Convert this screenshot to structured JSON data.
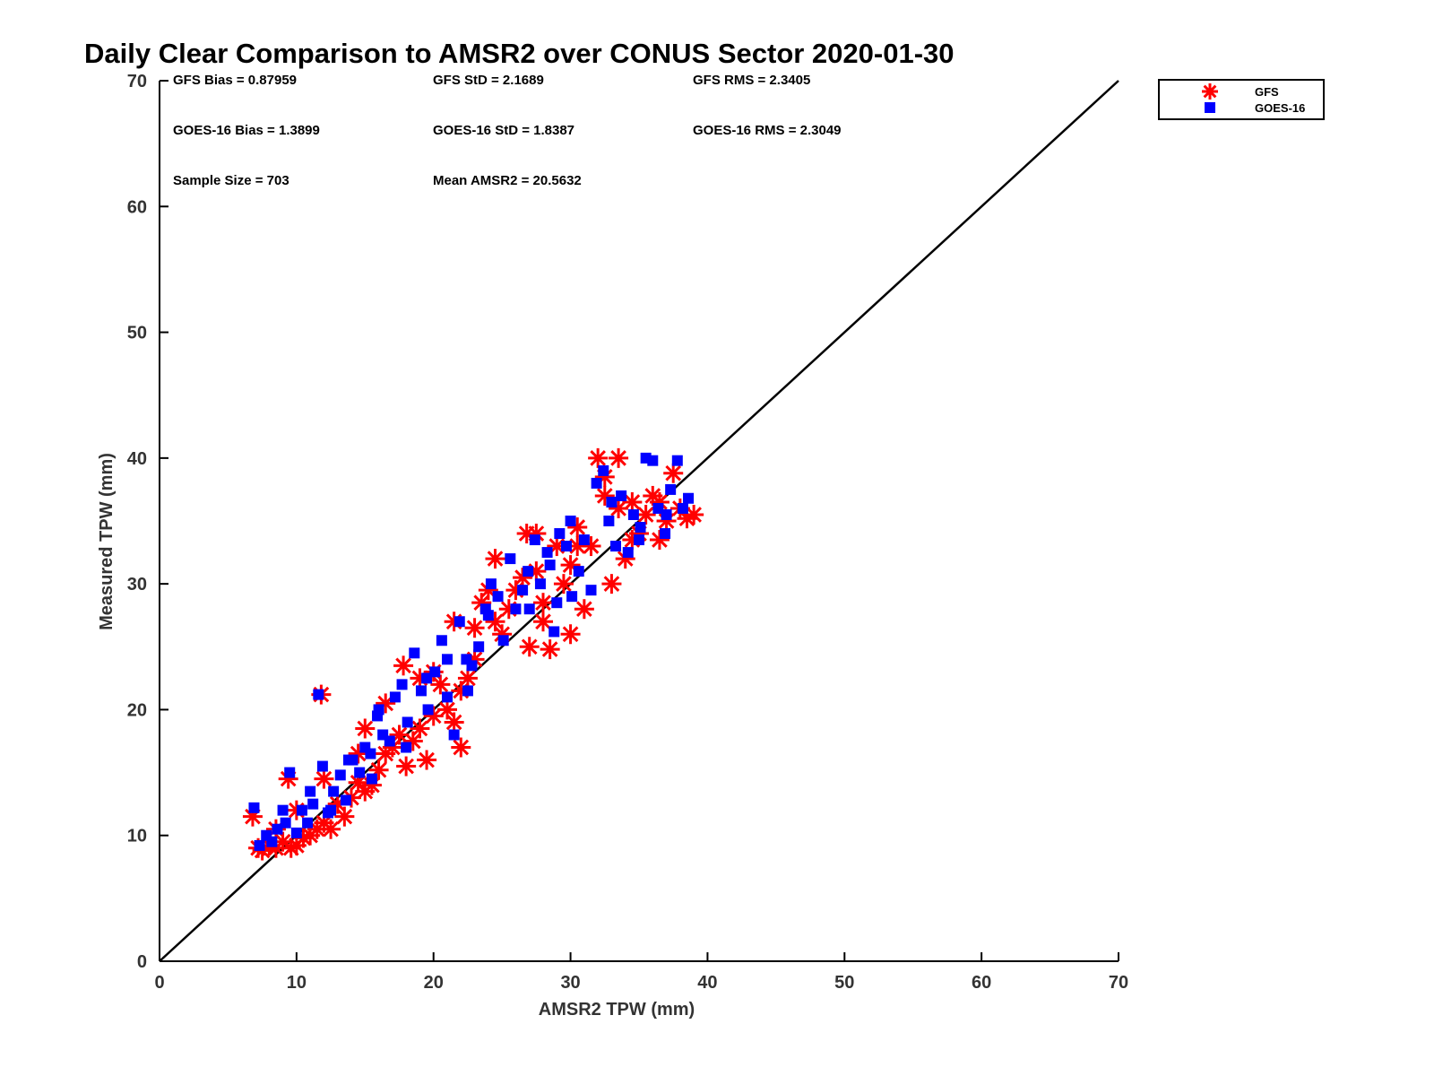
{
  "chart_data": {
    "type": "scatter",
    "title": "Daily Clear Comparison to AMSR2 over CONUS Sector 2020-01-30",
    "xlabel": "AMSR2 TPW (mm)",
    "ylabel": "Measured TPW (mm)",
    "xlim": [
      0,
      70
    ],
    "ylim": [
      0,
      70
    ],
    "xticks": [
      "0",
      "10",
      "20",
      "30",
      "40",
      "50",
      "60",
      "70"
    ],
    "yticks": [
      "0",
      "10",
      "20",
      "30",
      "40",
      "50",
      "60",
      "70"
    ],
    "grid": false,
    "legend_position": "outside-top-right",
    "reference_line": {
      "from": [
        0,
        0
      ],
      "to": [
        70,
        70
      ],
      "color": "#000000"
    },
    "stats": [
      {
        "label": "GFS Bias = 0.87959"
      },
      {
        "label": "GFS StD = 2.1689"
      },
      {
        "label": "GFS RMS = 2.3405"
      },
      {
        "label": "GOES-16 Bias = 1.3899"
      },
      {
        "label": "GOES-16 StD = 1.8387"
      },
      {
        "label": "GOES-16 RMS = 2.3049"
      },
      {
        "label": "Sample Size = 703"
      },
      {
        "label": "Mean AMSR2 = 20.5632"
      }
    ],
    "series": [
      {
        "name": "GFS",
        "marker": "asterisk",
        "color": "#ff0000",
        "points": [
          [
            6.8,
            11.5
          ],
          [
            7.2,
            9.0
          ],
          [
            7.5,
            8.8
          ],
          [
            8.0,
            9.2
          ],
          [
            8.5,
            9.0
          ],
          [
            9.0,
            9.5
          ],
          [
            9.4,
            14.5
          ],
          [
            9.6,
            9.0
          ],
          [
            10.0,
            9.2
          ],
          [
            10.5,
            9.8
          ],
          [
            11.0,
            10.0
          ],
          [
            11.5,
            10.5
          ],
          [
            11.8,
            21.2
          ],
          [
            12.0,
            11.0
          ],
          [
            12.5,
            10.5
          ],
          [
            13.0,
            12.5
          ],
          [
            13.5,
            11.5
          ],
          [
            14.0,
            13.0
          ],
          [
            14.5,
            14.2
          ],
          [
            15.0,
            13.5
          ],
          [
            15.5,
            14.0
          ],
          [
            16.0,
            15.2
          ],
          [
            16.5,
            16.5
          ],
          [
            17.0,
            17.0
          ],
          [
            17.5,
            18.0
          ],
          [
            18.0,
            15.5
          ],
          [
            18.5,
            17.5
          ],
          [
            19.0,
            18.5
          ],
          [
            19.5,
            16.0
          ],
          [
            20.0,
            19.5
          ],
          [
            20.5,
            22.0
          ],
          [
            21.0,
            20.0
          ],
          [
            21.5,
            19.0
          ],
          [
            22.0,
            17.0
          ],
          [
            22.5,
            22.5
          ],
          [
            23.0,
            26.5
          ],
          [
            23.5,
            28.5
          ],
          [
            24.0,
            29.5
          ],
          [
            24.5,
            27.0
          ],
          [
            25.0,
            26.0
          ],
          [
            25.5,
            28.0
          ],
          [
            26.0,
            29.5
          ],
          [
            26.5,
            30.5
          ],
          [
            27.0,
            25.0
          ],
          [
            27.5,
            34.0
          ],
          [
            28.0,
            28.5
          ],
          [
            28.5,
            24.8
          ],
          [
            29.0,
            33.0
          ],
          [
            29.5,
            30.0
          ],
          [
            30.0,
            31.5
          ],
          [
            30.5,
            34.5
          ],
          [
            31.0,
            28.0
          ],
          [
            31.5,
            33.0
          ],
          [
            32.0,
            40.0
          ],
          [
            32.5,
            37.0
          ],
          [
            33.0,
            30.0
          ],
          [
            33.5,
            40.0
          ],
          [
            34.0,
            32.0
          ],
          [
            34.5,
            36.5
          ],
          [
            35.0,
            34.0
          ],
          [
            35.5,
            35.5
          ],
          [
            36.0,
            37.0
          ],
          [
            36.5,
            33.5
          ],
          [
            37.0,
            35.0
          ],
          [
            37.5,
            38.8
          ],
          [
            38.0,
            36.0
          ],
          [
            38.5,
            35.2
          ],
          [
            39.0,
            35.5
          ],
          [
            30.0,
            26.0
          ],
          [
            28.0,
            27.0
          ],
          [
            17.8,
            23.5
          ],
          [
            19.0,
            22.5
          ],
          [
            21.5,
            27.0
          ],
          [
            26.8,
            34.0
          ],
          [
            24.5,
            32.0
          ],
          [
            33.5,
            36.0
          ],
          [
            32.5,
            38.5
          ],
          [
            23.0,
            24.0
          ],
          [
            16.5,
            20.5
          ],
          [
            15.0,
            18.5
          ],
          [
            12.0,
            14.5
          ],
          [
            10.0,
            12.0
          ],
          [
            8.5,
            10.5
          ],
          [
            14.5,
            16.5
          ],
          [
            20.0,
            23.0
          ],
          [
            22.0,
            21.5
          ],
          [
            27.5,
            31.0
          ],
          [
            30.5,
            33.0
          ],
          [
            34.5,
            33.5
          ],
          [
            36.5,
            36.5
          ]
        ]
      },
      {
        "name": "GOES-16",
        "marker": "square",
        "color": "#0000ff",
        "points": [
          [
            6.9,
            12.2
          ],
          [
            7.3,
            9.2
          ],
          [
            7.8,
            10.0
          ],
          [
            8.2,
            9.5
          ],
          [
            8.6,
            10.5
          ],
          [
            9.2,
            11.0
          ],
          [
            9.5,
            15.0
          ],
          [
            10.0,
            10.2
          ],
          [
            10.4,
            12.0
          ],
          [
            10.8,
            11.0
          ],
          [
            11.2,
            12.5
          ],
          [
            11.6,
            21.2
          ],
          [
            11.9,
            15.5
          ],
          [
            12.3,
            11.8
          ],
          [
            12.7,
            13.5
          ],
          [
            13.2,
            14.8
          ],
          [
            13.6,
            12.8
          ],
          [
            14.1,
            16.0
          ],
          [
            14.6,
            15.0
          ],
          [
            15.0,
            17.0
          ],
          [
            15.4,
            16.5
          ],
          [
            15.9,
            19.5
          ],
          [
            16.3,
            18.0
          ],
          [
            16.8,
            17.5
          ],
          [
            17.2,
            21.0
          ],
          [
            17.7,
            22.0
          ],
          [
            18.1,
            19.0
          ],
          [
            18.6,
            24.5
          ],
          [
            19.1,
            21.5
          ],
          [
            19.6,
            20.0
          ],
          [
            20.1,
            23.0
          ],
          [
            20.6,
            25.5
          ],
          [
            21.0,
            21.0
          ],
          [
            21.5,
            18.0
          ],
          [
            21.9,
            27.0
          ],
          [
            22.4,
            24.0
          ],
          [
            22.8,
            23.5
          ],
          [
            23.3,
            25.0
          ],
          [
            23.8,
            28.0
          ],
          [
            24.2,
            30.0
          ],
          [
            24.7,
            29.0
          ],
          [
            25.1,
            25.5
          ],
          [
            25.6,
            32.0
          ],
          [
            26.0,
            28.0
          ],
          [
            26.5,
            29.5
          ],
          [
            26.9,
            31.0
          ],
          [
            27.4,
            33.5
          ],
          [
            27.8,
            30.0
          ],
          [
            28.3,
            32.5
          ],
          [
            28.8,
            26.2
          ],
          [
            29.2,
            34.0
          ],
          [
            29.7,
            33.0
          ],
          [
            30.1,
            29.0
          ],
          [
            30.6,
            31.0
          ],
          [
            31.0,
            33.5
          ],
          [
            31.5,
            29.5
          ],
          [
            31.9,
            38.0
          ],
          [
            32.4,
            39.0
          ],
          [
            32.8,
            35.0
          ],
          [
            33.3,
            33.0
          ],
          [
            33.7,
            37.0
          ],
          [
            34.2,
            32.5
          ],
          [
            34.6,
            35.5
          ],
          [
            35.1,
            34.5
          ],
          [
            35.5,
            40.0
          ],
          [
            36.0,
            39.8
          ],
          [
            36.4,
            36.0
          ],
          [
            36.9,
            34.0
          ],
          [
            37.3,
            37.5
          ],
          [
            37.8,
            39.8
          ],
          [
            38.2,
            36.0
          ],
          [
            38.6,
            36.8
          ],
          [
            29.0,
            28.5
          ],
          [
            28.5,
            31.5
          ],
          [
            19.5,
            22.5
          ],
          [
            21.0,
            24.0
          ],
          [
            16.0,
            20.0
          ],
          [
            13.8,
            16.0
          ],
          [
            11.0,
            13.5
          ],
          [
            9.0,
            12.0
          ],
          [
            22.5,
            21.5
          ],
          [
            24.0,
            27.5
          ],
          [
            27.0,
            28.0
          ],
          [
            30.0,
            35.0
          ],
          [
            33.0,
            36.5
          ],
          [
            35.0,
            33.5
          ],
          [
            37.0,
            35.5
          ],
          [
            18.0,
            17.0
          ],
          [
            15.5,
            14.5
          ],
          [
            12.5,
            12.0
          ]
        ]
      }
    ]
  }
}
